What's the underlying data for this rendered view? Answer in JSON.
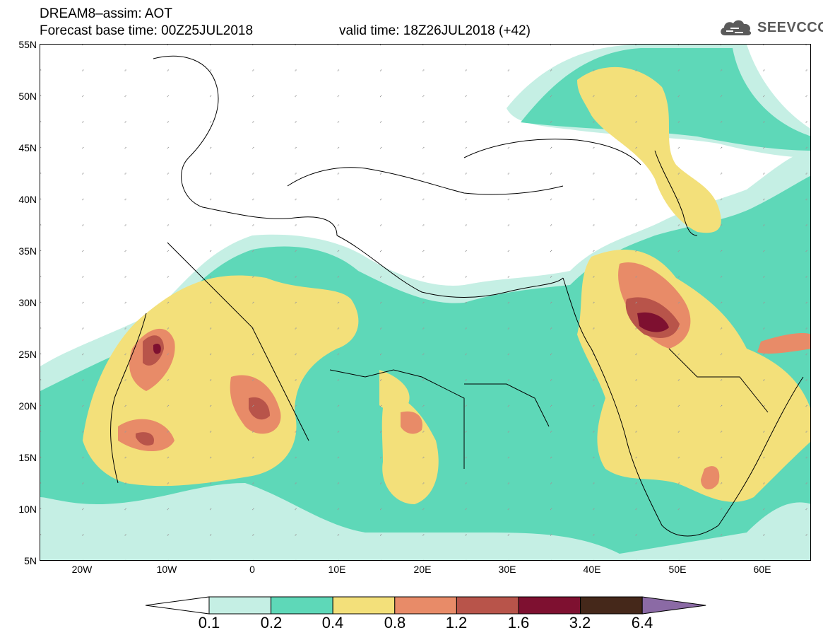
{
  "header": {
    "line1": "DREAM8–assim: AOT",
    "line2": "Forecast base time: 00Z25JUL2018",
    "valid": "valid time: 18Z26JUL2018 (+42)"
  },
  "logo": {
    "text": "SEEVCCC",
    "icon": "cloud-icon"
  },
  "map": {
    "lat_labels": [
      "55N",
      "50N",
      "45N",
      "40N",
      "35N",
      "30N",
      "25N",
      "20N",
      "15N",
      "10N",
      "5N"
    ],
    "lon_labels": [
      "20W",
      "10W",
      "0",
      "10E",
      "20E",
      "30E",
      "40E",
      "50E",
      "60E"
    ],
    "region": "North Africa, Europe and Middle East",
    "colors": {
      "0.1": "#c5efe4",
      "0.2": "#5ed8b8",
      "0.4": "#f3e07a",
      "0.8": "#e88b68",
      "1.2": "#b8544a",
      "1.6": "#7e1030",
      "3.2": "#45281a",
      "6.4": "#8b6aa5"
    }
  },
  "colorbar": {
    "labels": [
      "0.1",
      "0.2",
      "0.4",
      "0.8",
      "1.2",
      "1.6",
      "3.2",
      "6.4"
    ],
    "colors": [
      "#c5efe4",
      "#5ed8b8",
      "#f3e07a",
      "#e88b68",
      "#b8544a",
      "#7e1030",
      "#45281a"
    ],
    "under_color": "#ffffff",
    "over_color": "#8b6aa5"
  }
}
